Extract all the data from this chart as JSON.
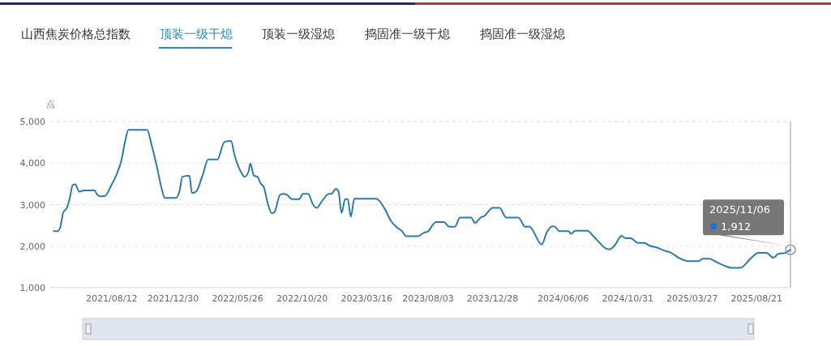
{
  "chart_data": {
    "type": "line",
    "title": "顶装一级干熄",
    "ylabel": "点",
    "annotations": [
      "山西焦炭价格总指数",
      "顶装一级湿熄",
      "捣固准一级干熄",
      "捣固准一级湿熄",
      "2025/11/06",
      "1,912"
    ],
    "xlim": [
      "2021-03-25",
      "2025-11-06"
    ],
    "xticks": [
      {
        "value": "2021-08-12",
        "label": "2021/08/12"
      },
      {
        "value": "2021-12-30",
        "label": "2021/12/30"
      },
      {
        "value": "2022-05-26",
        "label": "2022/05/26"
      },
      {
        "value": "2022-10-20",
        "label": "2022/10/20"
      },
      {
        "value": "2023-03-16",
        "label": "2023/03/16"
      },
      {
        "value": "2023-08-03",
        "label": "2023/08/03"
      },
      {
        "value": "2023-12-28",
        "label": "2023/12/28"
      },
      {
        "value": "2024-06-06",
        "label": "2024/06/06"
      },
      {
        "value": "2024-10-31",
        "label": "2024/10/31"
      },
      {
        "value": "2025-03-27",
        "label": "2025/03/27"
      },
      {
        "value": "2025-08-21",
        "label": "2025/08/21"
      }
    ],
    "ylim": [
      1000,
      5000
    ],
    "yticks": [
      {
        "value": 1000,
        "label": "1,000"
      },
      {
        "value": 2000,
        "label": "2,000"
      },
      {
        "value": 3000,
        "label": "3,000"
      },
      {
        "value": 4000,
        "label": "4,000"
      },
      {
        "value": 5000,
        "label": "5,000"
      }
    ],
    "grid": "y",
    "marker": "none",
    "line_style": "solid",
    "series": [
      {
        "color": "#2b7bab",
        "x": [
          "2021-04-02",
          "2021-04-11",
          "2021-04-17",
          "2021-04-23",
          "2021-05-03",
          "2021-05-09",
          "2021-05-15",
          "2021-05-21",
          "2021-05-30",
          "2021-06-09",
          "2021-07-04",
          "2021-07-10",
          "2021-07-16",
          "2021-07-28",
          "2021-08-10",
          "2021-08-22",
          "2021-09-03",
          "2021-09-12",
          "2021-09-19",
          "2021-11-01",
          "2021-11-10",
          "2021-11-22",
          "2021-12-05",
          "2021-12-11",
          "2022-01-05",
          "2022-01-14",
          "2022-01-20",
          "2022-02-05",
          "2022-02-11",
          "2022-02-20",
          "2022-03-07",
          "2022-03-20",
          "2022-04-10",
          "2022-04-26",
          "2022-05-11",
          "2022-05-19",
          "2022-06-02",
          "2022-06-11",
          "2022-06-20",
          "2022-06-24",
          "2022-07-02",
          "2022-07-10",
          "2022-07-18",
          "2022-07-24",
          "2022-08-03",
          "2022-08-12",
          "2022-08-18",
          "2022-08-31",
          "2022-09-09",
          "2022-09-15",
          "2022-09-27",
          "2022-10-13",
          "2022-10-22",
          "2022-11-03",
          "2022-11-13",
          "2022-11-22",
          "2022-12-04",
          "2022-12-20",
          "2022-12-26",
          "2023-01-05",
          "2023-01-11",
          "2023-01-18",
          "2023-01-26",
          "2023-02-01",
          "2023-02-08",
          "2023-02-16",
          "2023-04-07",
          "2023-04-25",
          "2023-05-11",
          "2023-05-24",
          "2023-06-04",
          "2023-06-14",
          "2023-07-11",
          "2023-07-24",
          "2023-08-02",
          "2023-08-21",
          "2023-09-08",
          "2023-09-20",
          "2023-10-03",
          "2023-10-15",
          "2023-11-09",
          "2023-11-18",
          "2023-12-01",
          "2023-12-10",
          "2023-12-16",
          "2023-12-28",
          "2024-01-13",
          "2024-01-28",
          "2024-02-25",
          "2024-03-11",
          "2024-03-21",
          "2024-04-18",
          "2024-04-30",
          "2024-05-12",
          "2024-05-18",
          "2024-05-28",
          "2024-06-18",
          "2024-06-24",
          "2024-07-04",
          "2024-07-31",
          "2024-08-13",
          "2024-08-28",
          "2024-09-06",
          "2024-09-19",
          "2024-10-01",
          "2024-10-17",
          "2024-10-26",
          "2024-11-07",
          "2024-11-23",
          "2024-12-08",
          "2024-12-20",
          "2025-01-05",
          "2025-01-20",
          "2025-02-05",
          "2025-02-26",
          "2025-03-17",
          "2025-04-11",
          "2025-04-20",
          "2025-05-05",
          "2025-05-21",
          "2025-06-08",
          "2025-06-24",
          "2025-07-15",
          "2025-08-06",
          "2025-08-25",
          "2025-09-12",
          "2025-09-28",
          "2025-10-10",
          "2025-10-22",
          "2025-11-06"
        ],
        "values": [
          2360,
          2360,
          2460,
          2790,
          2950,
          3180,
          3470,
          3490,
          3310,
          3340,
          3340,
          3240,
          3200,
          3210,
          3440,
          3700,
          4060,
          4540,
          4800,
          4800,
          4480,
          3960,
          3340,
          3160,
          3160,
          3340,
          3670,
          3700,
          3280,
          3310,
          3700,
          4090,
          4090,
          4510,
          4530,
          4190,
          3800,
          3670,
          3800,
          3990,
          3700,
          3670,
          3500,
          3440,
          3020,
          2790,
          2820,
          3240,
          3260,
          3240,
          3130,
          3130,
          3260,
          3260,
          3020,
          2920,
          3080,
          3260,
          3260,
          3380,
          3310,
          2800,
          3130,
          3130,
          2710,
          3140,
          3140,
          2920,
          2600,
          2450,
          2370,
          2240,
          2240,
          2320,
          2350,
          2580,
          2580,
          2470,
          2470,
          2690,
          2690,
          2560,
          2690,
          2730,
          2800,
          2920,
          2920,
          2690,
          2690,
          2470,
          2470,
          2040,
          2340,
          2480,
          2470,
          2360,
          2360,
          2300,
          2370,
          2370,
          2250,
          2080,
          1980,
          1920,
          2010,
          2250,
          2190,
          2190,
          2080,
          2080,
          2010,
          1970,
          1900,
          1850,
          1710,
          1640,
          1640,
          1700,
          1700,
          1620,
          1530,
          1480,
          1480,
          1690,
          1840,
          1840,
          1720,
          1820,
          1830,
          1912
        ]
      }
    ]
  }
}
